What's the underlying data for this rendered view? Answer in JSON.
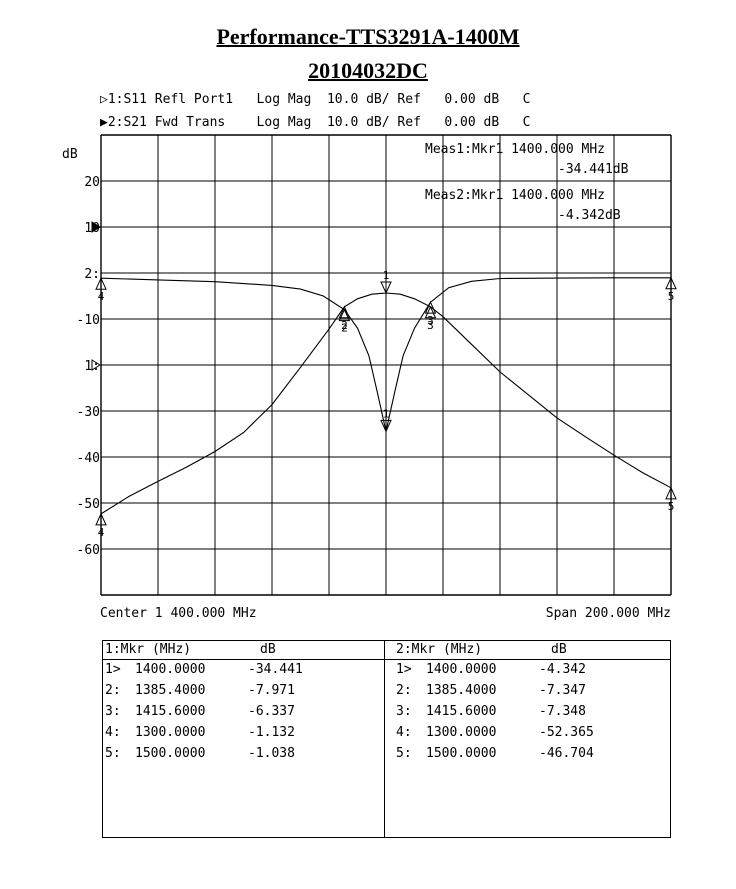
{
  "title": "Performance-TTS3291A-1400M",
  "subtitle": "20104032DC",
  "traces": [
    {
      "marker_symbol": "▷",
      "text": "1:S11 Refl Port1   Log Mag  10.0 dB/ Ref   0.00 dB   C"
    },
    {
      "marker_symbol": "▶",
      "text": "2:S21 Fwd Trans    Log Mag  10.0 dB/ Ref   0.00 dB   C"
    }
  ],
  "y_unit": "dB",
  "y_ticks": [
    "20",
    "10",
    "2:",
    "-10",
    "1:",
    "-30",
    "-40",
    "-50",
    "-60"
  ],
  "meas": [
    {
      "line1": "Meas1:Mkr1 1400.000 MHz",
      "line2": "-34.441dB"
    },
    {
      "line1": "Meas2:Mkr1 1400.000 MHz",
      "line2": "-4.342dB"
    }
  ],
  "center_label": "Center 1 400.000 MHz",
  "span_label": "Span 200.000 MHz",
  "chart_data": {
    "type": "line",
    "x_range": [
      1300,
      1500
    ],
    "x_unit": "MHz",
    "ylim": [
      -70,
      30
    ],
    "ylabel": "dB",
    "grid": true,
    "series": [
      {
        "name": "S11 Refl Port1",
        "x": [
          1300,
          1320,
          1340,
          1360,
          1370,
          1378,
          1385.4,
          1390,
          1394,
          1397,
          1400,
          1403,
          1406,
          1410,
          1415.6,
          1422,
          1430,
          1440,
          1460,
          1480,
          1500
        ],
        "y": [
          -1.132,
          -1.5,
          -1.9,
          -2.7,
          -3.5,
          -5.0,
          -7.971,
          -12,
          -18,
          -26,
          -34.441,
          -26,
          -18,
          -12,
          -6.337,
          -3.2,
          -1.8,
          -1.2,
          -1.1,
          -1.05,
          -1.038
        ]
      },
      {
        "name": "S21 Fwd Trans",
        "x": [
          1300,
          1310,
          1320,
          1330,
          1340,
          1350,
          1360,
          1370,
          1380,
          1385.4,
          1390,
          1395,
          1400,
          1405,
          1410,
          1415.6,
          1420,
          1430,
          1440,
          1450,
          1460,
          1470,
          1480,
          1490,
          1500
        ],
        "y": [
          -52.365,
          -48.5,
          -45.3,
          -42.2,
          -38.8,
          -34.7,
          -28.6,
          -20.5,
          -12.2,
          -7.347,
          -5.6,
          -4.6,
          -4.342,
          -4.6,
          -5.6,
          -7.348,
          -9.5,
          -15.5,
          -21.5,
          -26.5,
          -31.5,
          -35.6,
          -39.6,
          -43.4,
          -46.704
        ]
      }
    ],
    "markers": {
      "s11": [
        {
          "id": "1",
          "x": 1400,
          "y": -34.441
        },
        {
          "id": "2",
          "x": 1385.4,
          "y": -7.971
        },
        {
          "id": "3",
          "x": 1415.6,
          "y": -6.337
        },
        {
          "id": "4",
          "x": 1300,
          "y": -1.132
        },
        {
          "id": "5",
          "x": 1500,
          "y": -1.038
        }
      ],
      "s21": [
        {
          "id": "1",
          "x": 1400,
          "y": -4.342
        },
        {
          "id": "2",
          "x": 1385.4,
          "y": -7.347
        },
        {
          "id": "3",
          "x": 1415.6,
          "y": -7.348
        },
        {
          "id": "4",
          "x": 1300,
          "y": -52.365
        },
        {
          "id": "5",
          "x": 1500,
          "y": -46.704
        }
      ]
    }
  },
  "table": {
    "left": {
      "header_mkr": "1:Mkr (MHz)",
      "header_db": "dB",
      "rows": [
        {
          "idx": "1>",
          "freq": "1400.0000",
          "db": "-34.441"
        },
        {
          "idx": "2:",
          "freq": "1385.4000",
          "db": "-7.971"
        },
        {
          "idx": "3:",
          "freq": "1415.6000",
          "db": "-6.337"
        },
        {
          "idx": "4:",
          "freq": "1300.0000",
          "db": "-1.132"
        },
        {
          "idx": "5:",
          "freq": "1500.0000",
          "db": "-1.038"
        }
      ]
    },
    "right": {
      "header_mkr": "2:Mkr (MHz)",
      "header_db": "dB",
      "rows": [
        {
          "idx": "1>",
          "freq": "1400.0000",
          "db": "-4.342"
        },
        {
          "idx": "2:",
          "freq": "1385.4000",
          "db": "-7.347"
        },
        {
          "idx": "3:",
          "freq": "1415.6000",
          "db": "-7.348"
        },
        {
          "idx": "4:",
          "freq": "1300.0000",
          "db": "-52.365"
        },
        {
          "idx": "5:",
          "freq": "1500.0000",
          "db": "-46.704"
        }
      ]
    }
  }
}
